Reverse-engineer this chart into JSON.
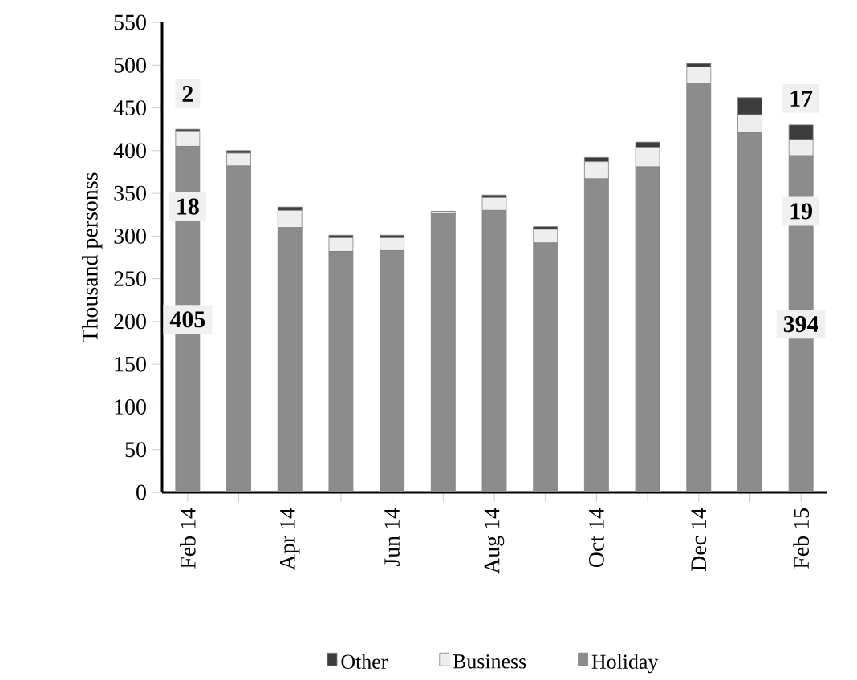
{
  "chart_data": {
    "type": "bar",
    "stacked": true,
    "ylabel": "Thousand personss",
    "categories": [
      "Feb 14",
      null,
      "Apr 14",
      null,
      "Jun 14",
      null,
      "Aug 14",
      null,
      "Oct 14",
      null,
      "Dec 14",
      null,
      "Feb 15"
    ],
    "series": [
      {
        "name": "Holiday",
        "color": "#8c8c8c",
        "values": [
          405,
          382,
          310,
          282,
          283,
          326,
          330,
          292,
          367,
          381,
          479,
          421,
          394
        ],
        "value_labels": [
          "405",
          null,
          null,
          null,
          null,
          null,
          null,
          null,
          null,
          null,
          null,
          null,
          "394"
        ]
      },
      {
        "name": "Business",
        "color": "#eeeeee",
        "values": [
          18,
          15,
          20,
          16,
          15,
          2,
          15,
          16,
          20,
          23,
          19,
          21,
          19
        ],
        "value_labels": [
          "18",
          null,
          null,
          null,
          null,
          null,
          null,
          null,
          null,
          null,
          null,
          null,
          "19"
        ]
      },
      {
        "name": "Other",
        "color": "#3c3c3c",
        "values": [
          2,
          3,
          4,
          3,
          3,
          1,
          3,
          3,
          5,
          6,
          4,
          20,
          17
        ],
        "value_labels": [
          "2",
          null,
          null,
          null,
          null,
          null,
          null,
          null,
          null,
          null,
          null,
          null,
          "17"
        ]
      }
    ],
    "ylim": [
      0,
      550
    ],
    "yticks": [
      0,
      50,
      100,
      150,
      200,
      250,
      300,
      350,
      400,
      450,
      500,
      550
    ],
    "grid": false,
    "legend": "bottom"
  }
}
